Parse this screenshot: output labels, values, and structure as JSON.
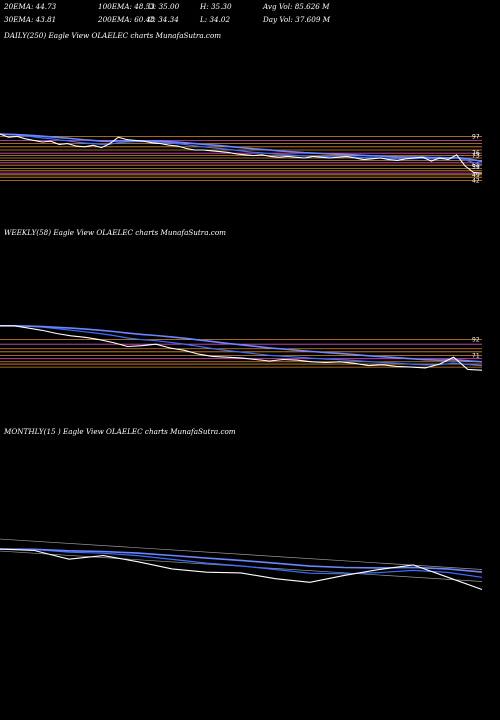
{
  "stats": {
    "row1": [
      "20EMA: 44.73",
      "100EMA: 48.53",
      "O: 35.00",
      "H: 35.30",
      "Avg Vol: 85.626  M"
    ],
    "row2": [
      "30EMA: 43.81",
      "200EMA: 60.48",
      "C: 34.34",
      "L: 34.02",
      "Day Vol: 37.609  M"
    ]
  },
  "panels": [
    {
      "title": "DAILY(250) Eagle  View  OLAELEC charts MunafaSutra.com",
      "ticks": [
        "97",
        "76",
        "73",
        "59",
        "61",
        "49",
        "42"
      ]
    },
    {
      "title": "WEEKLY(58) Eagle  View  OLAELEC charts MunafaSutra.com",
      "ticks": [
        "92",
        "71"
      ]
    },
    {
      "title": "MONTHLY(15                    ) Eagle  View  OLAELEC charts MunafaSutra.com",
      "ticks": []
    }
  ],
  "colors": {
    "background": "#000000",
    "price": "#ffffff",
    "ema_fast": "#3b6fff",
    "ema_slow": "#6b86ff",
    "levels": "#d98a2b",
    "levels_magenta": "#d24fc0",
    "trend": "#9a9a9a"
  },
  "chart_data": [
    {
      "type": "line",
      "title": "DAILY(250) Eagle  View  OLAELEC charts MunafaSutra.com",
      "ylim": [
        30,
        105
      ],
      "series": [
        {
          "values": [
            100,
            96,
            97,
            94,
            92,
            90,
            91,
            87,
            88,
            85,
            84,
            86,
            83,
            88,
            96,
            93,
            92,
            91,
            89,
            88,
            86,
            85,
            82,
            80,
            80,
            79,
            78,
            77,
            75,
            74,
            73,
            74,
            72,
            71,
            72,
            71,
            70,
            72,
            71,
            70,
            71,
            72,
            70,
            68,
            69,
            70,
            68,
            67,
            69,
            70,
            71,
            66,
            70,
            68,
            74,
            60,
            52,
            51
          ]
        }
      ],
      "levels": [
        97,
        92,
        88,
        84,
        80,
        76,
        73,
        70,
        67,
        64,
        61,
        57,
        54,
        51,
        49,
        46,
        42
      ]
    },
    {
      "type": "line",
      "title": "WEEKLY(58) Eagle  View  OLAELEC charts MunafaSutra.com",
      "ylim": [
        30,
        115
      ],
      "series": [
        {
          "values": [
            110,
            110,
            107,
            104,
            100,
            97,
            95,
            92,
            88,
            83,
            84,
            86,
            81,
            78,
            73,
            70,
            69,
            68,
            66,
            64,
            66,
            65,
            63,
            62,
            63,
            61,
            58,
            59,
            57,
            56,
            55,
            60,
            69,
            53,
            52
          ]
        }
      ],
      "levels": [
        92,
        86,
        80,
        76,
        71,
        67,
        63,
        60,
        56
      ]
    },
    {
      "type": "line",
      "title": "MONTHLY(15                    ) Eagle  View  OLAELEC charts MunafaSutra.com",
      "ylim": [
        20,
        200
      ],
      "series": [
        {
          "values": [
            150,
            146,
            122,
            132,
            115,
            95,
            86,
            84,
            68,
            58,
            77,
            93,
            106,
            72,
            38
          ]
        }
      ],
      "levels": []
    }
  ]
}
